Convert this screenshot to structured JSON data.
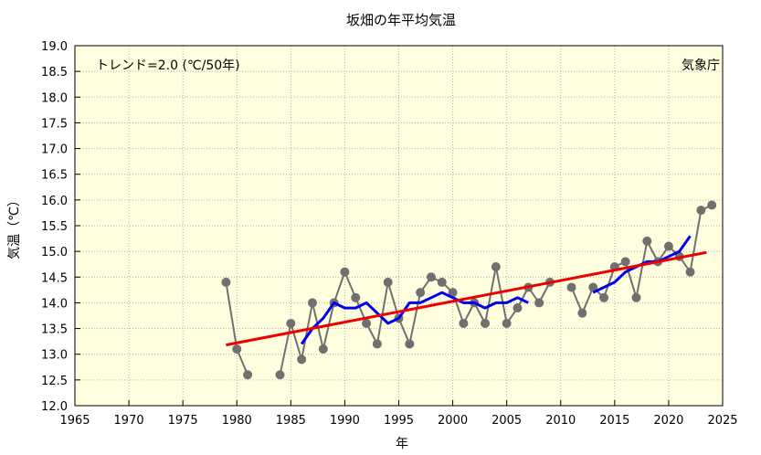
{
  "chart_data": {
    "type": "line",
    "title": "坂畑の年平均気温",
    "xlabel": "年",
    "ylabel": "気温（℃）",
    "xlim": [
      1965,
      2025
    ],
    "ylim": [
      12.0,
      19.0
    ],
    "x_ticks": [
      1965,
      1970,
      1975,
      1980,
      1985,
      1990,
      1995,
      2000,
      2005,
      2010,
      2015,
      2020,
      2025
    ],
    "x_tick_labels": [
      "1965",
      "1970",
      "1975",
      "1980",
      "1985",
      "1990",
      "1995",
      "2000",
      "2005",
      "2010",
      "2015",
      "2020",
      "2025"
    ],
    "y_ticks": [
      12.0,
      12.5,
      13.0,
      13.5,
      14.0,
      14.5,
      15.0,
      15.5,
      16.0,
      16.5,
      17.0,
      17.5,
      18.0,
      18.5,
      19.0
    ],
    "y_tick_labels": [
      "12.0",
      "12.5",
      "13.0",
      "13.5",
      "14.0",
      "14.5",
      "15.0",
      "15.5",
      "16.0",
      "16.5",
      "17.0",
      "17.5",
      "18.0",
      "18.5",
      "19.0"
    ],
    "grid": true,
    "annotations": {
      "trend_text": "トレンド=2.0 (℃/50年)",
      "source_text": "気象庁"
    },
    "colors": {
      "background": "#ffffe0",
      "annual": "#707070",
      "moving_average": "#0000ee",
      "trend": "#ee0000",
      "grid": "#b0b0b0"
    },
    "series": [
      {
        "role": "annual",
        "segments": [
          [
            [
              1979,
              14.4
            ],
            [
              1980,
              13.1
            ],
            [
              1981,
              12.6
            ]
          ],
          [
            [
              1984,
              12.6
            ],
            [
              1985,
              13.6
            ],
            [
              1986,
              12.9
            ],
            [
              1987,
              14.0
            ],
            [
              1988,
              13.1
            ],
            [
              1989,
              14.0
            ],
            [
              1990,
              14.6
            ],
            [
              1991,
              14.1
            ],
            [
              1992,
              13.6
            ],
            [
              1993,
              13.2
            ],
            [
              1994,
              14.4
            ],
            [
              1995,
              13.7
            ],
            [
              1996,
              13.2
            ],
            [
              1997,
              14.2
            ],
            [
              1998,
              14.5
            ],
            [
              1999,
              14.4
            ],
            [
              2000,
              14.2
            ],
            [
              2001,
              13.6
            ],
            [
              2002,
              14.0
            ],
            [
              2003,
              13.6
            ],
            [
              2004,
              14.7
            ],
            [
              2005,
              13.6
            ],
            [
              2006,
              13.9
            ],
            [
              2007,
              14.3
            ],
            [
              2008,
              14.0
            ],
            [
              2009,
              14.4
            ]
          ],
          [
            [
              2011,
              14.3
            ],
            [
              2012,
              13.8
            ],
            [
              2013,
              14.3
            ],
            [
              2014,
              14.1
            ],
            [
              2015,
              14.7
            ],
            [
              2016,
              14.8
            ],
            [
              2017,
              14.1
            ],
            [
              2018,
              15.2
            ],
            [
              2019,
              14.8
            ],
            [
              2020,
              15.1
            ],
            [
              2021,
              14.9
            ],
            [
              2022,
              14.6
            ],
            [
              2023,
              15.8
            ],
            [
              2024,
              15.9
            ]
          ]
        ]
      },
      {
        "role": "moving_average",
        "segments": [
          [
            [
              1986,
              13.2
            ],
            [
              1987,
              13.5
            ],
            [
              1988,
              13.7
            ],
            [
              1989,
              14.0
            ],
            [
              1990,
              13.9
            ],
            [
              1991,
              13.9
            ],
            [
              1992,
              14.0
            ],
            [
              1993,
              13.8
            ],
            [
              1994,
              13.6
            ],
            [
              1995,
              13.7
            ],
            [
              1996,
              14.0
            ],
            [
              1997,
              14.0
            ],
            [
              1998,
              14.1
            ],
            [
              1999,
              14.2
            ],
            [
              2000,
              14.1
            ],
            [
              2001,
              14.0
            ],
            [
              2002,
              14.0
            ],
            [
              2003,
              13.9
            ],
            [
              2004,
              14.0
            ],
            [
              2005,
              14.0
            ],
            [
              2006,
              14.1
            ],
            [
              2007,
              14.0
            ]
          ],
          [
            [
              2013,
              14.2
            ],
            [
              2014,
              14.3
            ],
            [
              2015,
              14.4
            ],
            [
              2016,
              14.6
            ],
            [
              2017,
              14.7
            ],
            [
              2018,
              14.8
            ],
            [
              2019,
              14.8
            ],
            [
              2020,
              14.9
            ],
            [
              2021,
              15.0
            ],
            [
              2022,
              15.3
            ]
          ]
        ]
      },
      {
        "role": "trend",
        "segments": [
          [
            [
              1979,
              13.18
            ],
            [
              2023.5,
              14.98
            ]
          ]
        ]
      }
    ]
  }
}
